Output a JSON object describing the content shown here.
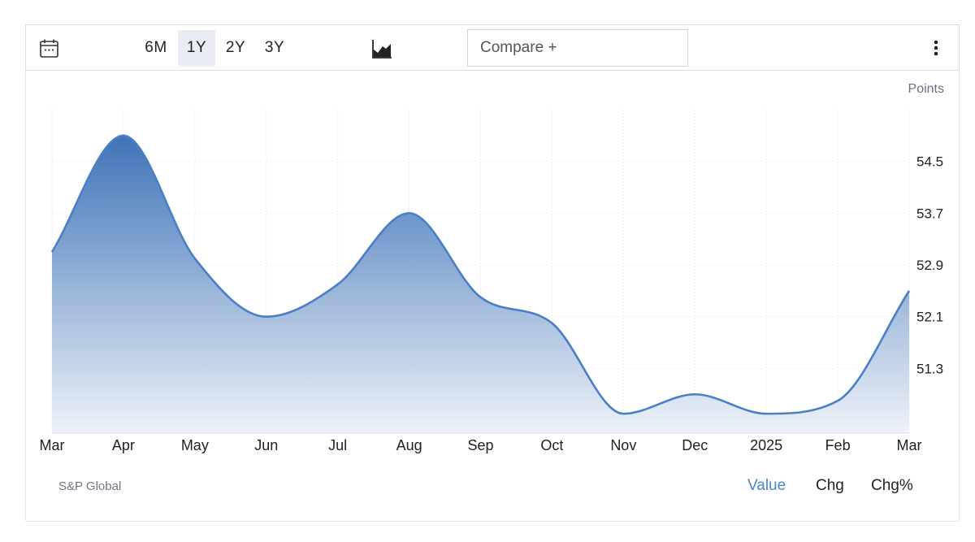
{
  "toolbar": {
    "calendar_icon": "calendar-icon",
    "ranges": [
      "6M",
      "1Y",
      "2Y",
      "3Y"
    ],
    "active_range": "1Y",
    "chart_type_icon": "area-chart-icon",
    "compare_label": "Compare +",
    "menu_icon": "kebab-menu-icon"
  },
  "unit": "Points",
  "source": "S&P Global",
  "modes": [
    "Value",
    "Chg",
    "Chg%"
  ],
  "active_mode": "Value",
  "colors": {
    "line": "#4a7fc6",
    "fill_top": "#3f74b8",
    "fill_bottom": "#eef2f8",
    "active_text": "#4a86c8"
  },
  "chart_data": {
    "type": "area",
    "x": [
      "Mar",
      "Apr",
      "May",
      "Jun",
      "Jul",
      "Aug",
      "Sep",
      "Oct",
      "Nov",
      "Dec",
      "2025",
      "Feb",
      "Mar"
    ],
    "values": [
      53.1,
      54.9,
      53.0,
      52.1,
      52.6,
      53.7,
      52.4,
      52.0,
      50.6,
      50.9,
      50.6,
      50.8,
      52.5
    ],
    "yticks": [
      51.3,
      52.1,
      52.9,
      53.7,
      54.5
    ],
    "ylim": [
      50.3,
      55.3
    ],
    "ylabel": "Points",
    "grid": true,
    "y_axis_side": "right"
  }
}
